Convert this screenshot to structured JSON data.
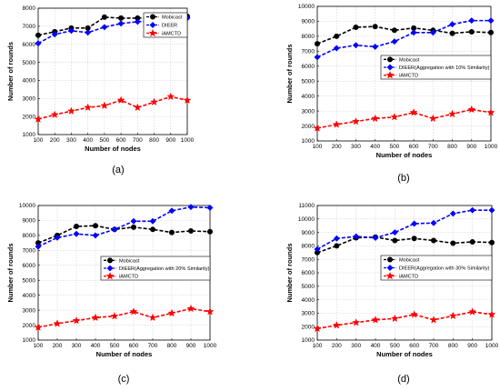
{
  "chart_data": [
    {
      "type": "line",
      "caption": "(a)",
      "xlabel": "Number of nodes",
      "ylabel": "Number of rounds",
      "x": [
        100,
        200,
        300,
        400,
        500,
        600,
        700,
        800,
        900,
        1000
      ],
      "xlim": [
        100,
        1000
      ],
      "ylim": [
        1000,
        8000
      ],
      "yticks": [
        1000,
        2000,
        3000,
        4000,
        5000,
        6000,
        7000,
        8000
      ],
      "grid": true,
      "legend_position": "top-right",
      "series": [
        {
          "name": "Mobicast",
          "color": "#000000",
          "marker": "circle",
          "values": [
            6500,
            6700,
            6900,
            6900,
            7500,
            7450,
            7450,
            7500,
            7450,
            7550
          ]
        },
        {
          "name": "DIEER",
          "color": "#0000ff",
          "marker": "diamond",
          "values": [
            6050,
            6550,
            6750,
            6650,
            6950,
            7150,
            7250,
            7300,
            7400,
            7450
          ]
        },
        {
          "name": "iAMCTD",
          "color": "#ff0000",
          "marker": "star",
          "values": [
            1850,
            2100,
            2300,
            2500,
            2600,
            2900,
            2500,
            2800,
            3100,
            2900
          ]
        }
      ]
    },
    {
      "type": "line",
      "caption": "(b)",
      "xlabel": "Number of nodes",
      "ylabel": "Number of rounds",
      "x": [
        100,
        200,
        300,
        400,
        500,
        600,
        700,
        800,
        900,
        1000
      ],
      "xlim": [
        100,
        1000
      ],
      "ylim": [
        1000,
        10000
      ],
      "yticks": [
        1000,
        2000,
        3000,
        4000,
        5000,
        6000,
        7000,
        8000,
        9000,
        10000
      ],
      "grid": true,
      "legend_position": "center-right",
      "series": [
        {
          "name": "Mobicast",
          "color": "#000000",
          "marker": "circle",
          "values": [
            7500,
            8000,
            8600,
            8650,
            8400,
            8550,
            8400,
            8200,
            8300,
            8250
          ]
        },
        {
          "name": "DIEER(Aggregation with 10% Similarity)",
          "color": "#0000ff",
          "marker": "diamond",
          "values": [
            6600,
            7200,
            7400,
            7300,
            7650,
            8250,
            8250,
            8800,
            9050,
            9050
          ]
        },
        {
          "name": "iAMCTD",
          "color": "#ff0000",
          "marker": "star",
          "values": [
            1850,
            2100,
            2300,
            2500,
            2600,
            2900,
            2500,
            2800,
            3100,
            2900
          ]
        }
      ]
    },
    {
      "type": "line",
      "caption": "(c)",
      "xlabel": "Number of nodes",
      "ylabel": "Number of rounds",
      "x": [
        100,
        200,
        300,
        400,
        500,
        600,
        700,
        800,
        900,
        1000
      ],
      "xlim": [
        100,
        1000
      ],
      "ylim": [
        1000,
        10000
      ],
      "yticks": [
        1000,
        2000,
        3000,
        4000,
        5000,
        6000,
        7000,
        8000,
        9000,
        10000
      ],
      "grid": true,
      "legend_position": "center-right",
      "series": [
        {
          "name": "Mobicast",
          "color": "#000000",
          "marker": "circle",
          "values": [
            7500,
            8000,
            8600,
            8650,
            8400,
            8550,
            8400,
            8200,
            8300,
            8250
          ]
        },
        {
          "name": "DIEER(Aggregation with 20% Similarity)",
          "color": "#0000ff",
          "marker": "diamond",
          "values": [
            7250,
            7850,
            8100,
            8000,
            8400,
            8950,
            8950,
            9650,
            9900,
            9850
          ]
        },
        {
          "name": "iAMCTD",
          "color": "#ff0000",
          "marker": "star",
          "values": [
            1850,
            2100,
            2300,
            2500,
            2600,
            2900,
            2500,
            2800,
            3100,
            2900
          ]
        }
      ]
    },
    {
      "type": "line",
      "caption": "(d)",
      "xlabel": "Number of nodes",
      "ylabel": "Number of rounds",
      "x": [
        100,
        200,
        300,
        400,
        500,
        600,
        700,
        800,
        900,
        1000
      ],
      "xlim": [
        100,
        1000
      ],
      "ylim": [
        1000,
        11000
      ],
      "yticks": [
        1000,
        2000,
        3000,
        4000,
        5000,
        6000,
        7000,
        8000,
        9000,
        10000,
        11000
      ],
      "grid": true,
      "legend_position": "center-right",
      "series": [
        {
          "name": "Mobicast",
          "color": "#000000",
          "marker": "circle",
          "values": [
            7500,
            8000,
            8600,
            8650,
            8400,
            8550,
            8400,
            8200,
            8300,
            8250
          ]
        },
        {
          "name": "DIEER(Aggregation with 30% Similarity)",
          "color": "#0000ff",
          "marker": "diamond",
          "values": [
            7750,
            8550,
            8700,
            8600,
            9000,
            9650,
            9700,
            10400,
            10650,
            10650
          ]
        },
        {
          "name": "iAMCTD",
          "color": "#ff0000",
          "marker": "star",
          "values": [
            1850,
            2100,
            2300,
            2500,
            2600,
            2900,
            2500,
            2800,
            3100,
            2900
          ]
        }
      ]
    }
  ]
}
